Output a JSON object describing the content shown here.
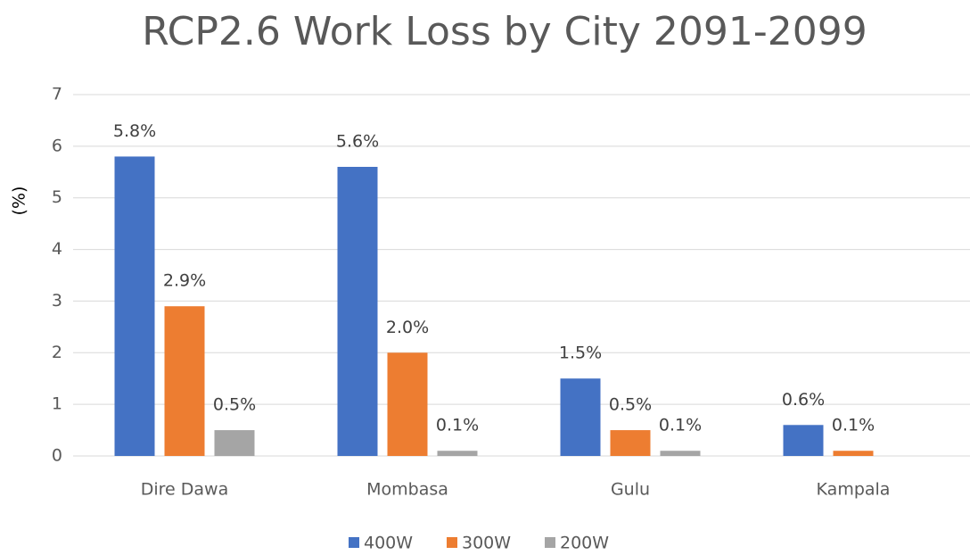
{
  "chart_data": {
    "type": "bar",
    "title": "RCP2.6 Work Loss by City 2091-2099",
    "y_label": "(%)",
    "categories": [
      "Dire Dawa",
      "Mombasa",
      "Gulu",
      "Kampala"
    ],
    "series": [
      {
        "name": "400W",
        "color": "#4472c4",
        "values": [
          5.8,
          5.6,
          1.5,
          0.6
        ],
        "value_labels": [
          "5.8%",
          "5.6%",
          "1.5%",
          "0.6%"
        ]
      },
      {
        "name": "300W",
        "color": "#ed7d31",
        "values": [
          2.9,
          2.0,
          0.5,
          0.1
        ],
        "value_labels": [
          "2.9%",
          "2.0%",
          "0.5%",
          "0.1%"
        ]
      },
      {
        "name": "200W",
        "color": "#a5a5a5",
        "values": [
          0.5,
          0.1,
          0.1,
          null
        ],
        "value_labels": [
          "0.5%",
          "0.1%",
          "0.1%",
          null
        ]
      }
    ],
    "ylim": [
      0,
      7
    ],
    "yticks": [
      0,
      1,
      2,
      3,
      4,
      5,
      6,
      7
    ],
    "grid": true,
    "legend": "bottom"
  }
}
